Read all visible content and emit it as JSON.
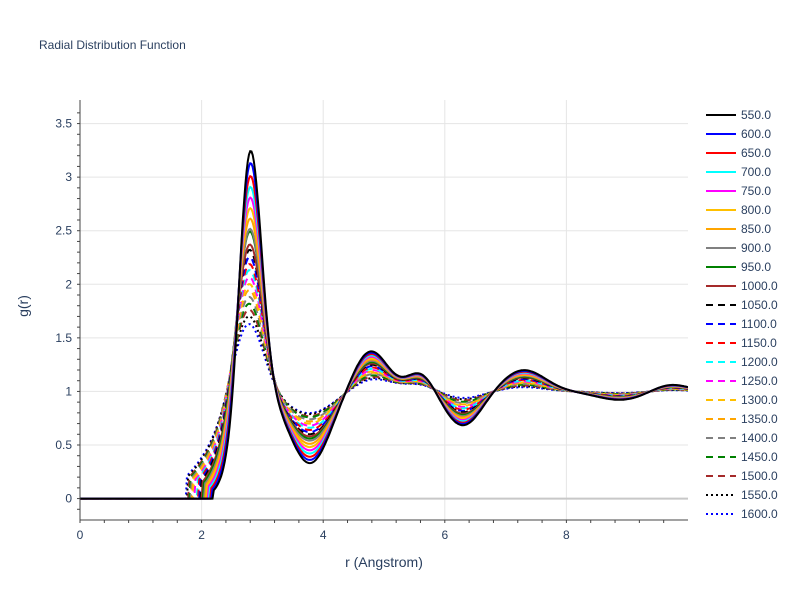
{
  "chart_data": {
    "type": "line",
    "title": "Radial Distribution Function",
    "xlabel": "r (Angstrom)",
    "ylabel": "g(r)",
    "xlim": [
      0,
      10
    ],
    "ylim": [
      -0.2,
      3.72
    ],
    "x_ticks": [
      0,
      2,
      4,
      6,
      8
    ],
    "x_tick_labels": [
      "0",
      "2",
      "4",
      "6",
      "8"
    ],
    "y_ticks": [
      0,
      0.5,
      1,
      1.5,
      2,
      2.5,
      3,
      3.5
    ],
    "y_tick_labels": [
      "0",
      "0.5",
      "1",
      "1.5",
      "2",
      "2.5",
      "3",
      "3.5"
    ],
    "grid": true,
    "legend_position": "right",
    "shape_note": "Each series is a radial distribution function: ~0 below r≈2, first peak near r≈2.8, minimum near r≈3.8, second peak near r≈4.8, further damped oscillations approaching 1.",
    "series": [
      {
        "name": "550.0",
        "color": "#000000",
        "dash": "solid",
        "peak": 3.53,
        "min1": 0.33
      },
      {
        "name": "600.0",
        "color": "#0000ff",
        "dash": "solid",
        "peak": 3.42,
        "min1": 0.36
      },
      {
        "name": "650.0",
        "color": "#ff0000",
        "dash": "solid",
        "peak": 3.3,
        "min1": 0.39
      },
      {
        "name": "700.0",
        "color": "#00ffff",
        "dash": "solid",
        "peak": 3.2,
        "min1": 0.42
      },
      {
        "name": "750.0",
        "color": "#ff00ff",
        "dash": "solid",
        "peak": 3.1,
        "min1": 0.45
      },
      {
        "name": "800.0",
        "color": "#ffc000",
        "dash": "solid",
        "peak": 3.0,
        "min1": 0.48
      },
      {
        "name": "850.0",
        "color": "#ffa500",
        "dash": "solid",
        "peak": 2.9,
        "min1": 0.51
      },
      {
        "name": "900.0",
        "color": "#808080",
        "dash": "solid",
        "peak": 2.8,
        "min1": 0.54
      },
      {
        "name": "950.0",
        "color": "#008000",
        "dash": "solid",
        "peak": 2.78,
        "min1": 0.56
      },
      {
        "name": "1000.0",
        "color": "#a52a2a",
        "dash": "solid",
        "peak": 2.65,
        "min1": 0.58
      },
      {
        "name": "1050.0",
        "color": "#000000",
        "dash": "dash",
        "peak": 2.6,
        "min1": 0.6
      },
      {
        "name": "1100.0",
        "color": "#0000ff",
        "dash": "dash",
        "peak": 2.53,
        "min1": 0.62
      },
      {
        "name": "1150.0",
        "color": "#ff0000",
        "dash": "dash",
        "peak": 2.46,
        "min1": 0.64
      },
      {
        "name": "1200.0",
        "color": "#00ffff",
        "dash": "dash",
        "peak": 2.4,
        "min1": 0.66
      },
      {
        "name": "1250.0",
        "color": "#ff00ff",
        "dash": "dash",
        "peak": 2.33,
        "min1": 0.68
      },
      {
        "name": "1300.0",
        "color": "#ffc000",
        "dash": "dash",
        "peak": 2.26,
        "min1": 0.7
      },
      {
        "name": "1350.0",
        "color": "#ffa500",
        "dash": "dash",
        "peak": 2.2,
        "min1": 0.72
      },
      {
        "name": "1400.0",
        "color": "#808080",
        "dash": "dash",
        "peak": 2.13,
        "min1": 0.74
      },
      {
        "name": "1450.0",
        "color": "#008000",
        "dash": "dash",
        "peak": 2.06,
        "min1": 0.76
      },
      {
        "name": "1500.0",
        "color": "#a52a2a",
        "dash": "dash",
        "peak": 2.0,
        "min1": 0.77
      },
      {
        "name": "1550.0",
        "color": "#000000",
        "dash": "dot",
        "peak": 1.93,
        "min1": 0.79
      },
      {
        "name": "1600.0",
        "color": "#0000ff",
        "dash": "dot",
        "peak": 1.85,
        "min1": 0.8
      }
    ]
  }
}
